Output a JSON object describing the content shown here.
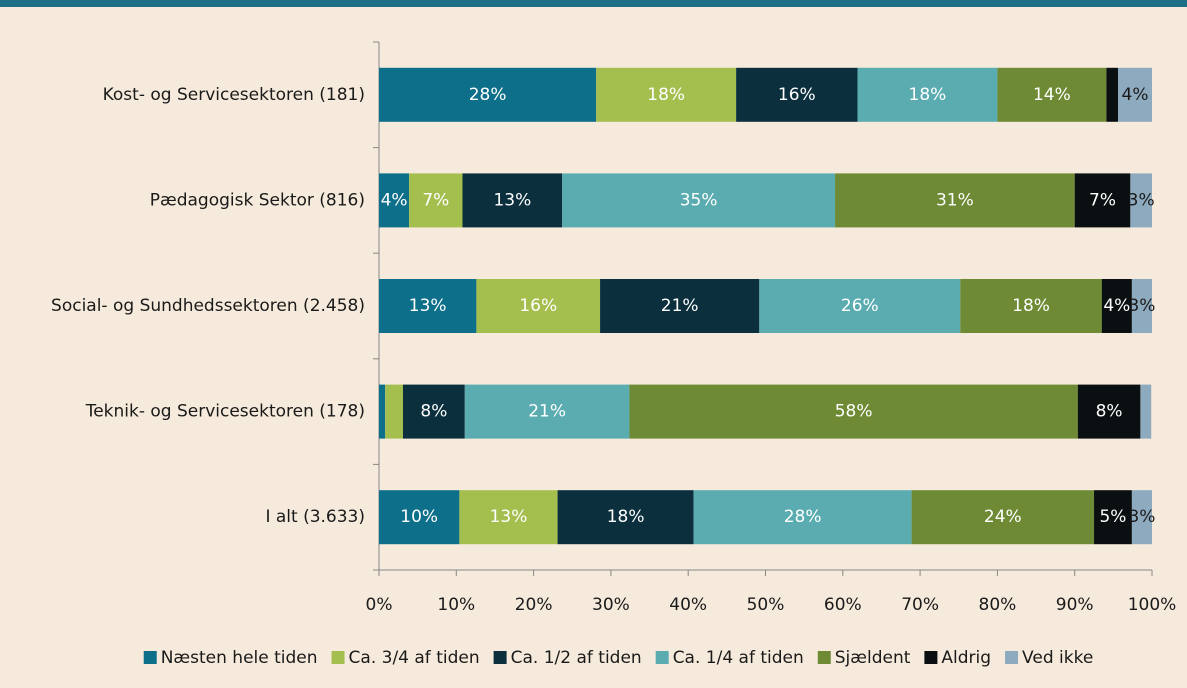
{
  "chart_data": {
    "type": "stacked-bar-horizontal",
    "categories": [
      "Kost- og Servicesektoren (181)",
      "Pædagogisk Sektor (816)",
      "Social- og Sundhedssektoren (2.458)",
      "Teknik- og Servicesektoren (178)",
      "I alt (3.633)"
    ],
    "series": [
      {
        "name": "Næsten hele tiden",
        "color": "#0e6f8a",
        "values": [
          28.1,
          3.9,
          12.6,
          0.8,
          10.4
        ],
        "value_labels": [
          "28%",
          "4%",
          "13%",
          null,
          "10%"
        ]
      },
      {
        "name": "Ca. 3/4 af tiden",
        "color": "#a5bf4f",
        "values": [
          18.1,
          6.9,
          16.0,
          2.3,
          12.7
        ],
        "value_labels": [
          "18%",
          "7%",
          "16%",
          null,
          "13%"
        ]
      },
      {
        "name": "Ca. 1/2 af tiden",
        "color": "#0b2f3d",
        "values": [
          15.7,
          12.9,
          20.6,
          8.0,
          17.6
        ],
        "value_labels": [
          "16%",
          "13%",
          "21%",
          "8%",
          "18%"
        ]
      },
      {
        "name": "Ca. 1/4 af tiden",
        "color": "#5aacb0",
        "values": [
          18.1,
          35.3,
          26.0,
          21.3,
          28.2
        ],
        "value_labels": [
          "18%",
          "35%",
          "26%",
          "21%",
          "28%"
        ]
      },
      {
        "name": "Sjældent",
        "color": "#6f8a35",
        "values": [
          14.1,
          31.0,
          18.3,
          58.0,
          23.6
        ],
        "value_labels": [
          "14%",
          "31%",
          "18%",
          "58%",
          "24%"
        ]
      },
      {
        "name": "Aldrig",
        "color": "#0a0f12",
        "values": [
          1.5,
          7.2,
          3.9,
          8.1,
          4.9
        ],
        "value_labels": [
          null,
          "7%",
          "4%",
          "8%",
          "5%"
        ]
      },
      {
        "name": "Ved ikke",
        "color": "#8eaabf",
        "values": [
          4.4,
          2.8,
          2.6,
          1.4,
          2.6
        ],
        "value_labels": [
          "4%",
          "3%",
          "3%",
          null,
          "3%"
        ]
      }
    ],
    "xlim": [
      0,
      100
    ],
    "xticks": [
      {
        "value": 0,
        "label": "0%"
      },
      {
        "value": 10,
        "label": "10%"
      },
      {
        "value": 20,
        "label": "20%"
      },
      {
        "value": 30,
        "label": "30%"
      },
      {
        "value": 40,
        "label": "40%"
      },
      {
        "value": 50,
        "label": "50%"
      },
      {
        "value": 60,
        "label": "60%"
      },
      {
        "value": 70,
        "label": "70%"
      },
      {
        "value": 80,
        "label": "80%"
      },
      {
        "value": 90,
        "label": "90%"
      },
      {
        "value": 100,
        "label": "100%"
      }
    ],
    "legend": "bottom"
  }
}
